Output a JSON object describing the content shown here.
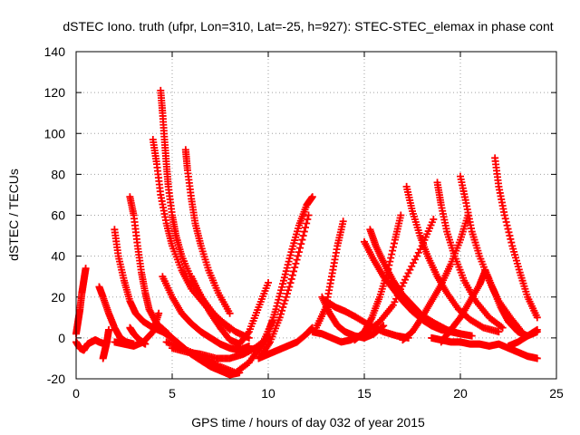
{
  "chart_data": {
    "type": "scatter",
    "title": "dSTEC Iono. truth (ufpr, Lon=310, Lat=-25, h=927): STEC-STEC_elemax in phase cont",
    "xlabel": "GPS time / hours of day 032 of year 2015",
    "ylabel": "dSTEC  / TECUs",
    "xlim": [
      0,
      25
    ],
    "ylim": [
      -20,
      140
    ],
    "xticks": [
      0,
      5,
      10,
      15,
      20,
      25
    ],
    "yticks": [
      -20,
      0,
      20,
      40,
      60,
      80,
      100,
      120,
      140
    ],
    "grid": true,
    "marker": "+",
    "color": "#ff0000",
    "series": [
      {
        "x": [
          0.0,
          0.1,
          0.2,
          0.3,
          0.4,
          0.5
        ],
        "y": [
          2,
          8,
          14,
          22,
          28,
          34
        ]
      },
      {
        "x": [
          0.0,
          0.2,
          0.4,
          0.6,
          0.8,
          1.0,
          1.2,
          1.5
        ],
        "y": [
          -2,
          -5,
          -6,
          -3,
          -2,
          -1,
          -2,
          -3
        ]
      },
      {
        "x": [
          1.2,
          1.4,
          1.7,
          2.0,
          2.3,
          2.6,
          3.0
        ],
        "y": [
          25,
          20,
          12,
          5,
          0,
          -2,
          -3
        ]
      },
      {
        "x": [
          1.4,
          1.5,
          1.6,
          1.7
        ],
        "y": [
          -10,
          -6,
          -2,
          4
        ]
      },
      {
        "x": [
          2.0,
          2.2,
          2.5,
          2.8,
          3.1,
          3.5,
          4.0
        ],
        "y": [
          53,
          40,
          28,
          18,
          12,
          8,
          5
        ]
      },
      {
        "x": [
          2.0,
          2.5,
          3.0,
          3.5,
          4.0,
          4.3
        ],
        "y": [
          -2,
          -3,
          -4,
          -2,
          3,
          12
        ]
      },
      {
        "x": [
          2.8,
          3.0,
          3.2,
          3.4,
          3.6,
          3.8,
          4.2,
          4.8
        ],
        "y": [
          69,
          60,
          45,
          32,
          22,
          14,
          7,
          2
        ]
      },
      {
        "x": [
          2.8,
          3.0,
          3.3,
          3.6
        ],
        "y": [
          5,
          2,
          -1,
          -3
        ]
      },
      {
        "x": [
          4.0,
          4.2,
          4.4,
          4.7,
          5.0,
          5.5,
          6.0,
          6.8,
          7.6,
          8.3,
          9.0
        ],
        "y": [
          97,
          85,
          70,
          56,
          45,
          33,
          24,
          15,
          8,
          3,
          0
        ]
      },
      {
        "x": [
          4.4,
          4.5,
          4.6,
          4.7,
          4.8,
          5.0,
          5.2,
          5.5,
          6.0,
          6.6,
          7.3,
          8.0
        ],
        "y": [
          121,
          110,
          97,
          85,
          74,
          60,
          50,
          40,
          29,
          19,
          10,
          4
        ]
      },
      {
        "x": [
          5.7,
          5.8,
          6.0,
          6.2,
          6.5,
          6.9,
          7.4,
          8.0
        ],
        "y": [
          92,
          82,
          68,
          56,
          45,
          33,
          22,
          12
        ]
      },
      {
        "x": [
          4.0,
          4.5,
          5.0,
          5.5,
          6.0,
          6.5,
          7.0,
          7.5,
          8.0,
          8.5
        ],
        "y": [
          5,
          3,
          0,
          -4,
          -8,
          -11,
          -14,
          -16,
          -18,
          -17
        ]
      },
      {
        "x": [
          4.5,
          5.0,
          5.5,
          6.0,
          6.5,
          7.0,
          7.5,
          8.0,
          8.5,
          9.0
        ],
        "y": [
          30,
          20,
          12,
          7,
          3,
          0,
          -3,
          -5,
          -6,
          -4
        ]
      },
      {
        "x": [
          6.0,
          6.5,
          7.0,
          7.5,
          8.0,
          8.5,
          9.0,
          9.5,
          10.0
        ],
        "y": [
          30,
          20,
          12,
          5,
          -1,
          -3,
          3,
          15,
          27
        ]
      },
      {
        "x": [
          5.0,
          5.8,
          6.5,
          7.3,
          8.0,
          8.7,
          9.3,
          10.0
        ],
        "y": [
          -5,
          -7,
          -8,
          -10,
          -10,
          -8,
          -5,
          0
        ]
      },
      {
        "x": [
          4.7,
          5.5,
          6.5,
          7.5,
          8.3,
          9.0,
          9.7,
          10.2
        ],
        "y": [
          -2,
          -5,
          -9,
          -14,
          -17,
          -12,
          -3,
          8
        ]
      },
      {
        "x": [
          9.5,
          10.0,
          10.5,
          11.0,
          11.5,
          12.0,
          12.3
        ],
        "y": [
          -10,
          -8,
          -6,
          -4,
          -2,
          2,
          5
        ]
      },
      {
        "x": [
          9.5,
          10.0,
          10.4,
          10.8,
          11.2,
          11.6,
          12.0,
          12.3
        ],
        "y": [
          -6,
          2,
          14,
          28,
          42,
          55,
          65,
          69
        ]
      },
      {
        "x": [
          9.6,
          10.1,
          10.6,
          11.1,
          11.6,
          12.1
        ],
        "y": [
          -9,
          -2,
          10,
          25,
          42,
          60
        ]
      },
      {
        "x": [
          12.5,
          13.0,
          13.3,
          13.6,
          13.9
        ],
        "y": [
          5,
          15,
          30,
          45,
          57
        ]
      },
      {
        "x": [
          12.8,
          13.2,
          13.6,
          14.0,
          14.5,
          15.0,
          15.5,
          16.0
        ],
        "y": [
          20,
          12,
          6,
          3,
          1,
          0,
          2,
          6
        ]
      },
      {
        "x": [
          12.3,
          12.8,
          13.3,
          13.8,
          14.3,
          15.0,
          15.8,
          16.5,
          17.2,
          18.0,
          18.6
        ],
        "y": [
          3,
          2,
          0,
          -2,
          -1,
          2,
          8,
          16,
          30,
          45,
          58
        ]
      },
      {
        "x": [
          13.0,
          13.5,
          14.0,
          14.6,
          15.3,
          16.0,
          16.7,
          17.3
        ],
        "y": [
          18,
          15,
          13,
          10,
          6,
          3,
          1,
          0
        ]
      },
      {
        "x": [
          15.0,
          15.5,
          16.0,
          16.5,
          17.0,
          17.5,
          18.0,
          18.5,
          19.0,
          19.5,
          20.0
        ],
        "y": [
          47,
          38,
          30,
          24,
          18,
          13,
          9,
          6,
          4,
          3,
          2
        ]
      },
      {
        "x": [
          15.3,
          15.6,
          16.0,
          16.5,
          17.0,
          17.5,
          18.0,
          18.7,
          19.3,
          20.0,
          20.6
        ],
        "y": [
          53,
          45,
          37,
          28,
          21,
          16,
          11,
          7,
          4,
          2,
          1
        ]
      },
      {
        "x": [
          14.5,
          15.0,
          15.4,
          15.8,
          16.2,
          16.6,
          16.9
        ],
        "y": [
          -1,
          3,
          10,
          20,
          32,
          48,
          60
        ]
      },
      {
        "x": [
          17.2,
          17.5,
          17.9,
          18.3,
          18.8,
          19.3,
          19.9,
          20.5,
          21.2,
          22.0
        ],
        "y": [
          74,
          62,
          50,
          40,
          30,
          22,
          14,
          9,
          5,
          3
        ]
      },
      {
        "x": [
          18.8,
          19.0,
          19.3,
          19.7,
          20.2,
          20.8,
          21.5,
          22.2
        ],
        "y": [
          76,
          65,
          52,
          40,
          28,
          18,
          10,
          5
        ]
      },
      {
        "x": [
          17.0,
          17.5,
          18.0,
          18.5,
          19.0,
          19.5,
          20.0,
          20.4
        ],
        "y": [
          -1,
          3,
          10,
          18,
          26,
          36,
          48,
          60
        ]
      },
      {
        "x": [
          20.0,
          20.3,
          20.6,
          21.0,
          21.5,
          22.0,
          22.6,
          23.2
        ],
        "y": [
          79,
          66,
          52,
          40,
          28,
          18,
          10,
          3
        ]
      },
      {
        "x": [
          21.8,
          22.0,
          22.3,
          22.7,
          23.1,
          23.5,
          24.0
        ],
        "y": [
          88,
          74,
          60,
          45,
          32,
          20,
          10
        ]
      },
      {
        "x": [
          18.5,
          19.0,
          19.5,
          20.0,
          20.5,
          21.0,
          21.5,
          22.0,
          22.5,
          23.0,
          23.5,
          24.0
        ],
        "y": [
          0,
          -1,
          -2,
          -2,
          -3,
          -3,
          -4,
          -3,
          -5,
          -7,
          -9,
          -10
        ]
      },
      {
        "x": [
          19.0,
          19.5,
          20.0,
          20.5,
          21.0,
          21.3
        ],
        "y": [
          -2,
          4,
          10,
          18,
          26,
          33
        ]
      },
      {
        "x": [
          21.3,
          21.7,
          22.1,
          22.5,
          23.0,
          23.5,
          24.0
        ],
        "y": [
          33,
          24,
          15,
          8,
          3,
          1,
          4
        ]
      },
      {
        "x": [
          22.5,
          23.0,
          23.5,
          24.0
        ],
        "y": [
          -4,
          -2,
          1,
          3
        ]
      }
    ]
  }
}
